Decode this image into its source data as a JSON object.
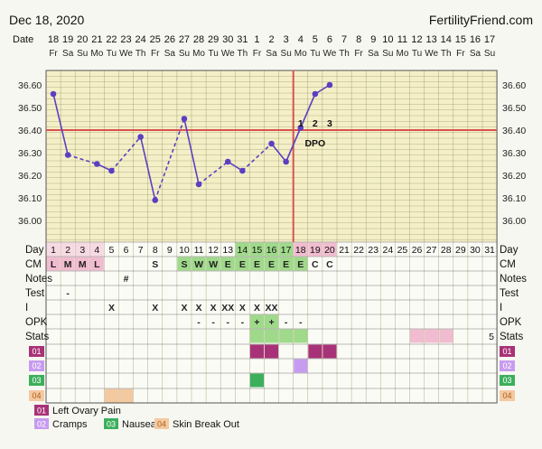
{
  "header": {
    "date": "Dec 18, 2020",
    "brand": "FertilityFriend.com"
  },
  "chart_data": {
    "type": "line",
    "title": "",
    "date_row_label": "Date",
    "dates": [
      "18",
      "19",
      "20",
      "21",
      "22",
      "23",
      "24",
      "25",
      "26",
      "27",
      "28",
      "29",
      "30",
      "31",
      "1",
      "2",
      "3",
      "4",
      "5",
      "6",
      "7",
      "8",
      "9",
      "10",
      "11",
      "12",
      "13",
      "14",
      "15",
      "16",
      "17"
    ],
    "weekdays": [
      "Fr",
      "Sa",
      "Su",
      "Mo",
      "Tu",
      "We",
      "Th",
      "Fr",
      "Sa",
      "Su",
      "Mo",
      "Tu",
      "We",
      "Th",
      "Fr",
      "Sa",
      "Su",
      "Mo",
      "Tu",
      "We",
      "Th",
      "Fr",
      "Sa",
      "Su",
      "Mo",
      "Tu",
      "We",
      "Th",
      "Fr",
      "Sa",
      "Su"
    ],
    "cycle_days": [
      "1",
      "2",
      "3",
      "4",
      "5",
      "6",
      "7",
      "8",
      "9",
      "10",
      "11",
      "12",
      "13",
      "14",
      "15",
      "16",
      "17",
      "18",
      "19",
      "20",
      "21",
      "22",
      "23",
      "24",
      "25",
      "26",
      "27",
      "28",
      "29",
      "30",
      "31"
    ],
    "y_ticks": [
      "36.60",
      "36.50",
      "36.40",
      "36.30",
      "36.20",
      "36.10",
      "36.00"
    ],
    "ylim": [
      35.8,
      36.7
    ],
    "temps": [
      36.56,
      36.29,
      null,
      36.25,
      36.22,
      null,
      36.37,
      36.09,
      null,
      36.45,
      36.16,
      null,
      36.26,
      36.22,
      null,
      36.34,
      36.26,
      36.41,
      36.56,
      36.6
    ],
    "coverline": 36.4,
    "ovulation_day": 17,
    "dpo_numbers": [
      "1",
      "2",
      "3"
    ],
    "dpo_label": "DPO",
    "row_labels": [
      "Day",
      "CM",
      "Notes",
      "Test",
      "I",
      "OPK",
      "Stats",
      "01",
      "02",
      "03",
      "04"
    ],
    "cm": [
      "L",
      "M",
      "M",
      "L",
      "",
      "",
      "",
      "S",
      "",
      "S",
      "W",
      "W",
      "E",
      "E",
      "E",
      "E",
      "E",
      "E",
      "C",
      "C"
    ],
    "notes": {
      "6": "#"
    },
    "test": {
      "2": "-"
    },
    "intercourse": {
      "5": "X",
      "8": "X",
      "10": "X",
      "11": "X",
      "12": "X",
      "13": "XX",
      "14": "X",
      "15": "X",
      "16": "XX"
    },
    "opk": {
      "11": "-",
      "12": "-",
      "13": "-",
      "14": "-",
      "15": "+",
      "16": "+",
      "17": "-",
      "18": "-"
    },
    "stats_value": "5",
    "symptom_rows": {
      "01": [
        15,
        16,
        19,
        20
      ],
      "02": [
        18
      ],
      "03": [
        15
      ],
      "04": [
        5,
        6
      ]
    },
    "legend": [
      {
        "code": "01",
        "label": "Left Ovary Pain"
      },
      {
        "code": "02",
        "label": "Cramps"
      },
      {
        "code": "03",
        "label": "Nausea"
      },
      {
        "code": "04",
        "label": "Skin Break Out"
      }
    ],
    "colors": {
      "line": "#5a3fc1",
      "coverline": "#d9534f",
      "grid": "#8a8a55",
      "plot_bg": "#f5efc8",
      "cm_bg": "#f2bcd0",
      "cm_fertile_bg": "#9fd98a",
      "stats_bg": "#f2bcd0",
      "c01": "#a83277",
      "c02": "#c79cf0",
      "c03": "#3caf5c",
      "c04": "#f4c9a0"
    }
  }
}
